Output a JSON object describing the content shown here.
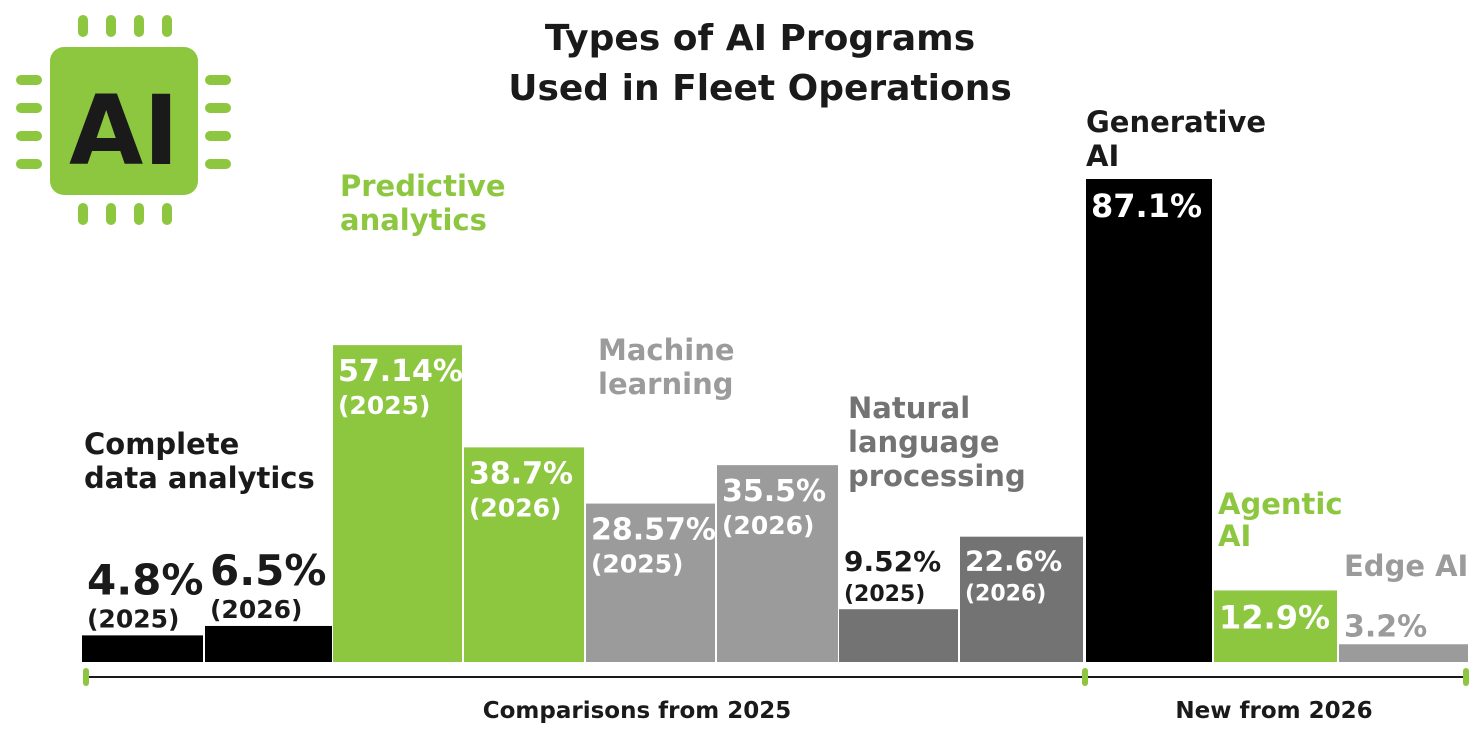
{
  "chart_data": {
    "type": "bar",
    "title_lines": [
      "Types of AI Programs",
      "Used in Fleet Operations"
    ],
    "logo_text": "AI",
    "ylim": [
      0,
      100
    ],
    "categories": [
      {
        "lines": [
          "Complete",
          "data analytics"
        ],
        "color": "#000000",
        "label_color": "#1a1a1a",
        "bars": [
          {
            "year": "(2025)",
            "value": 4.8,
            "label": "4.8%"
          },
          {
            "year": "(2026)",
            "value": 6.5,
            "label": "6.5%"
          }
        ]
      },
      {
        "lines": [
          "Predictive",
          "analytics"
        ],
        "color": "#8dc63f",
        "label_color": "#8dc63f",
        "bars": [
          {
            "year": "(2025)",
            "value": 57.14,
            "label": "57.14%"
          },
          {
            "year": "(2026)",
            "value": 38.7,
            "label": "38.7%"
          }
        ]
      },
      {
        "lines": [
          "Machine",
          "learning"
        ],
        "color": "#9b9b9b",
        "label_color": "#9b9b9b",
        "bars": [
          {
            "year": "(2025)",
            "value": 28.57,
            "label": "28.57%"
          },
          {
            "year": "(2026)",
            "value": 35.5,
            "label": "35.5%"
          }
        ]
      },
      {
        "lines": [
          "Natural",
          "language",
          "processing"
        ],
        "color": "#737373",
        "label_color": "#737373",
        "bars": [
          {
            "year": "(2025)",
            "value": 9.52,
            "label": "9.52%"
          },
          {
            "year": "(2026)",
            "value": 22.6,
            "label": "22.6%"
          }
        ]
      },
      {
        "lines": [
          "Generative",
          "AI"
        ],
        "color": "#000000",
        "label_color": "#1a1a1a",
        "bars": [
          {
            "year": "",
            "value": 87.1,
            "label": "87.1%"
          }
        ]
      },
      {
        "lines": [
          "Agentic",
          "AI"
        ],
        "color": "#8dc63f",
        "label_color": "#8dc63f",
        "bars": [
          {
            "year": "",
            "value": 12.9,
            "label": "12.9%"
          }
        ]
      },
      {
        "lines": [
          "Edge AI"
        ],
        "color": "#9b9b9b",
        "label_color": "#9b9b9b",
        "bars": [
          {
            "year": "",
            "value": 3.2,
            "label": "3.2%"
          }
        ]
      }
    ],
    "sections": [
      {
        "label": "Comparisons from 2025"
      },
      {
        "label": "New from 2026"
      }
    ]
  }
}
